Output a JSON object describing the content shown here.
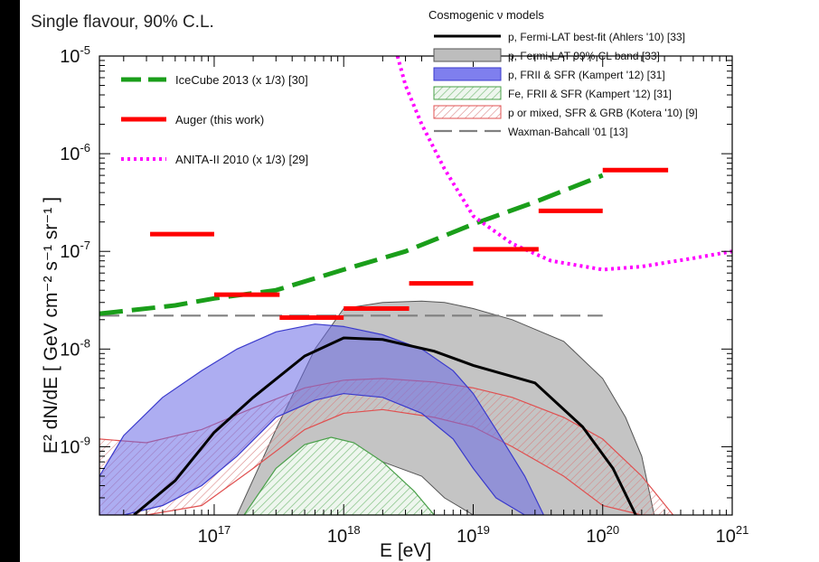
{
  "chart_data": {
    "type": "line",
    "title": "Single flavour, 90% C.L.",
    "xlabel": "E  [eV]",
    "ylabel": "E² dN/dE  [ GeV cm⁻² s⁻¹ sr⁻¹ ]",
    "x_scale": "log",
    "y_scale": "log",
    "xlim": [
      1.3e+16,
      1e+21
    ],
    "ylim": [
      2e-10,
      1e-05
    ],
    "x_ticks": [
      {
        "label": "10",
        "exp": "17",
        "value": 1e+17
      },
      {
        "label": "10",
        "exp": "18",
        "value": 1e+18
      },
      {
        "label": "10",
        "exp": "19",
        "value": 1e+19
      },
      {
        "label": "10",
        "exp": "20",
        "value": 1e+20
      },
      {
        "label": "10",
        "exp": "21",
        "value": 1e+21
      }
    ],
    "y_ticks": [
      {
        "label": "10",
        "exp": "-9",
        "value": 1e-09
      },
      {
        "label": "10",
        "exp": "-8",
        "value": 1e-08
      },
      {
        "label": "10",
        "exp": "-7",
        "value": 1e-07
      },
      {
        "label": "10",
        "exp": "-6",
        "value": 1e-06
      },
      {
        "label": "10",
        "exp": "-5",
        "value": 1e-05
      }
    ],
    "legend_limits": [
      {
        "name": "IceCube 2013 (x 1/3) [30]",
        "color": "#1a9e1a",
        "style": "dashed"
      },
      {
        "name": "Auger (this work)",
        "color": "#ff0000",
        "style": "steps"
      },
      {
        "name": "ANITA-II 2010 (x 1/3) [29]",
        "color": "#ff00ff",
        "style": "dotted"
      }
    ],
    "legend_models_title": "Cosmogenic  ν models",
    "legend_models": [
      {
        "name": "p, Fermi-LAT best-fit (Ahlers '10) [33]",
        "color": "#000000",
        "style": "solid"
      },
      {
        "name": "p, Fermi-LAT 99% CL band [33]",
        "color": "#bdbdbd",
        "style": "band"
      },
      {
        "name": "p, FRII & SFR (Kampert '12) [31]",
        "color": "#8080ee",
        "style": "band"
      },
      {
        "name": "Fe, FRII & SFR (Kampert '12) [31]",
        "color": "#8fc98f",
        "style": "hatched"
      },
      {
        "name": "p or mixed, SFR & GRB (Kotera '10) [9]",
        "color": "#e08080",
        "style": "hatched"
      },
      {
        "name": "Waxman-Bahcall '01 [13]",
        "color": "#808080",
        "style": "dashed"
      }
    ],
    "series": [
      {
        "name": "IceCube 2013 (x 1/3) [30]",
        "x": [
          1.3e+16,
          5e+16,
          1e+17,
          3e+17,
          1e+18,
          3e+18,
          1e+19,
          3e+19,
          1e+20
        ],
        "y": [
          2.3e-08,
          2.8e-08,
          3.3e-08,
          4e-08,
          6.5e-08,
          1e-07,
          1.9e-07,
          3.2e-07,
          6e-07
        ]
      },
      {
        "name": "Auger (this work)",
        "segments": [
          {
            "x0": 3.2e+16,
            "x1": 1e+17,
            "y": 1.5e-07
          },
          {
            "x0": 1e+17,
            "x1": 3.2e+17,
            "y": 3.6e-08
          },
          {
            "x0": 3.2e+17,
            "x1": 1e+18,
            "y": 2.1e-08
          },
          {
            "x0": 1e+18,
            "x1": 3.2e+18,
            "y": 2.6e-08
          },
          {
            "x0": 3.2e+18,
            "x1": 1e+19,
            "y": 4.7e-08
          },
          {
            "x0": 1e+19,
            "x1": 3.2e+19,
            "y": 1.05e-07
          },
          {
            "x0": 3.2e+19,
            "x1": 1e+20,
            "y": 2.6e-07
          },
          {
            "x0": 1e+20,
            "x1": 3.2e+20,
            "y": 6.8e-07
          }
        ]
      },
      {
        "name": "ANITA-II 2010 (x 1/3) [29]",
        "x": [
          2.6e+18,
          3e+18,
          4e+18,
          6e+18,
          1e+19,
          2e+19,
          4e+19,
          1e+20,
          2e+20,
          5e+20,
          1e+21
        ],
        "y": [
          1e-05,
          5e-06,
          2e-06,
          7e-07,
          2.3e-07,
          1.2e-07,
          8e-08,
          6.5e-08,
          7e-08,
          8.5e-08,
          1e-07
        ]
      },
      {
        "name": "p, Fermi-LAT best-fit (Ahlers '10) [33]",
        "x": [
          2.4e+16,
          5e+16,
          1e+17,
          2e+17,
          5e+17,
          1e+18,
          2e+18,
          5e+18,
          1e+19,
          3e+19,
          7e+19,
          1.2e+20,
          1.8e+20
        ],
        "y": [
          2e-10,
          4.5e-10,
          1.4e-09,
          3.2e-09,
          8.5e-09,
          1.3e-08,
          1.25e-08,
          9.5e-09,
          6.8e-09,
          4.5e-09,
          1.6e-09,
          6e-10,
          2e-10
        ]
      },
      {
        "name": "Waxman-Bahcall '01 [13]",
        "x": [
          1.3e+16,
          1e+20
        ],
        "y": [
          2.2e-08,
          2.2e-08
        ]
      }
    ],
    "bands": [
      {
        "name": "p, Fermi-LAT 99% CL band [33]",
        "x": [
          1.5e+17,
          3e+17,
          6e+17,
          1e+18,
          2e+18,
          4e+18,
          6e+18,
          1e+19,
          2e+19,
          5e+19,
          1e+20,
          1.5e+20,
          2e+20,
          2.5e+20
        ],
        "upper": [
          2e-10,
          1.5e-09,
          1e-08,
          2.6e-08,
          3e-08,
          3.1e-08,
          3e-08,
          2.6e-08,
          2e-08,
          1.2e-08,
          5e-09,
          2e-09,
          8e-10,
          2e-10
        ],
        "lower": [
          2e-10,
          2e-10,
          5e-10,
          7e-10,
          7e-10,
          5e-10,
          3e-10,
          2e-10,
          2e-10,
          2e-10,
          2e-10,
          2e-10,
          2e-10,
          2e-10
        ]
      },
      {
        "name": "p, FRII & SFR (Kampert '12) [31]",
        "x": [
          1.3e+16,
          2e+16,
          4e+16,
          8e+16,
          1.5e+17,
          3e+17,
          6e+17,
          1e+18,
          2e+18,
          4e+18,
          7e+18,
          1e+19,
          1.5e+19,
          2.5e+19,
          3.5e+19
        ],
        "upper": [
          5e-10,
          1.3e-09,
          3.2e-09,
          6e-09,
          1e-08,
          1.5e-08,
          1.8e-08,
          1.7e-08,
          1.4e-08,
          1e-08,
          6e-09,
          3.5e-09,
          1.5e-09,
          5e-10,
          2e-10
        ],
        "lower": [
          2e-10,
          2e-10,
          2.5e-10,
          4e-10,
          8e-10,
          2e-09,
          3e-09,
          3.5e-09,
          3.2e-09,
          2.2e-09,
          1.2e-09,
          6e-10,
          3e-10,
          2e-10,
          2e-10
        ]
      },
      {
        "name": "Fe, FRII & SFR (Kampert '12) [31]",
        "x": [
          1.7e+17,
          3e+17,
          5e+17,
          8e+17,
          1.2e+18,
          2e+18,
          3.5e+18,
          5e+18
        ],
        "upper": [
          2e-10,
          6e-10,
          1.05e-09,
          1.25e-09,
          1.1e-09,
          7e-10,
          3.5e-10,
          2e-10
        ],
        "lower": [
          2e-10,
          2e-10,
          2e-10,
          2e-10,
          2e-10,
          2e-10,
          2e-10,
          2e-10
        ]
      },
      {
        "name": "p or mixed, SFR & GRB (Kotera '10) [9]",
        "x": [
          1.3e+16,
          3e+16,
          8e+16,
          2e+17,
          5e+17,
          1e+18,
          2e+18,
          5e+18,
          1e+19,
          2e+19,
          5e+19,
          1e+20,
          2e+20,
          3.5e+20
        ],
        "upper": [
          1.2e-09,
          1.1e-09,
          1.5e-09,
          2.5e-09,
          4e-09,
          4.8e-09,
          5e-09,
          4.6e-09,
          4e-09,
          3.2e-09,
          2e-09,
          1.2e-09,
          5e-10,
          2e-10
        ],
        "lower": [
          2e-10,
          2e-10,
          2.5e-10,
          6e-10,
          1.5e-09,
          2.2e-09,
          2.4e-09,
          2e-09,
          1.6e-09,
          1e-09,
          5e-10,
          2.5e-10,
          2e-10,
          2e-10
        ]
      }
    ]
  }
}
